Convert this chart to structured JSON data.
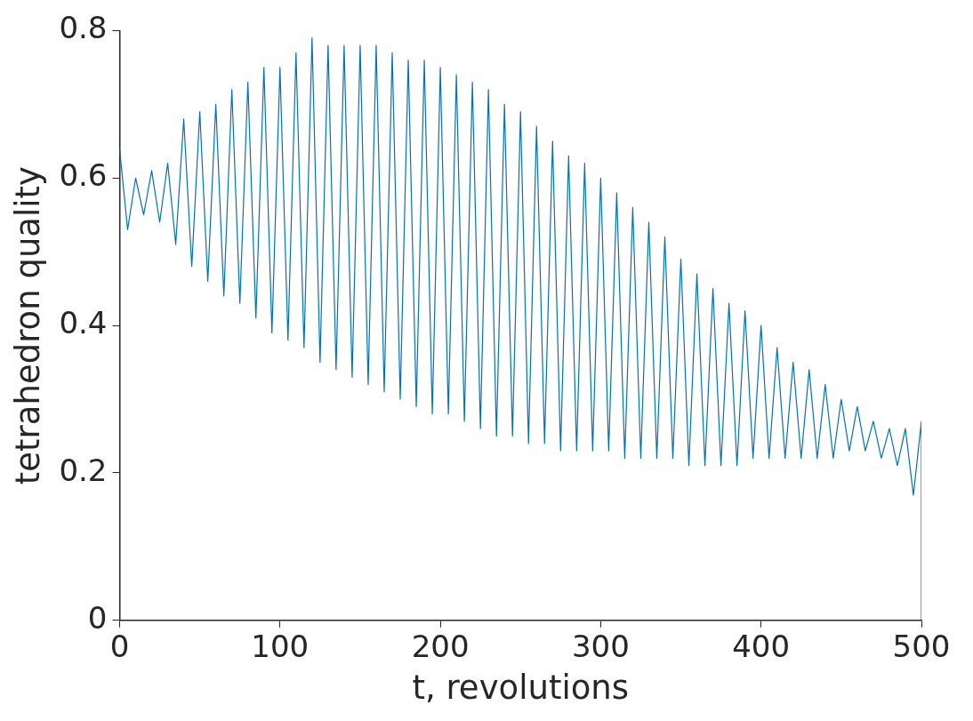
{
  "chart_data": {
    "type": "line",
    "xlabel": "t, revolutions",
    "ylabel": "tetrahedron quality",
    "xlim": [
      0,
      500
    ],
    "xticks": [
      0,
      100,
      200,
      300,
      400,
      500
    ],
    "ylim": [
      0,
      0.8
    ],
    "yticks": [
      0,
      0.2,
      0.4,
      0.6,
      0.8
    ],
    "grid": false,
    "legend": false,
    "marker": "none",
    "line_style": "solid",
    "series": [
      {
        "color": "#0072bd",
        "x": [
          0,
          5,
          10,
          15,
          20,
          25,
          30,
          35,
          40,
          45,
          50,
          55,
          60,
          65,
          70,
          75,
          80,
          85,
          90,
          95,
          100,
          105,
          110,
          115,
          120,
          125,
          130,
          135,
          140,
          145,
          150,
          155,
          160,
          165,
          170,
          175,
          180,
          185,
          190,
          195,
          200,
          205,
          210,
          215,
          220,
          225,
          230,
          235,
          240,
          245,
          250,
          255,
          260,
          265,
          270,
          275,
          280,
          285,
          290,
          295,
          300,
          305,
          310,
          315,
          320,
          325,
          330,
          335,
          340,
          345,
          350,
          355,
          360,
          365,
          370,
          375,
          380,
          385,
          390,
          395,
          400,
          405,
          410,
          415,
          420,
          425,
          430,
          435,
          440,
          445,
          450,
          455,
          460,
          465,
          470,
          475,
          480,
          485,
          490,
          495,
          500,
          500
        ],
        "values": [
          0.64,
          0.53,
          0.6,
          0.55,
          0.61,
          0.54,
          0.62,
          0.51,
          0.68,
          0.48,
          0.69,
          0.46,
          0.7,
          0.44,
          0.72,
          0.43,
          0.73,
          0.41,
          0.75,
          0.39,
          0.75,
          0.38,
          0.77,
          0.37,
          0.79,
          0.35,
          0.78,
          0.34,
          0.78,
          0.33,
          0.78,
          0.32,
          0.78,
          0.31,
          0.77,
          0.3,
          0.76,
          0.29,
          0.76,
          0.28,
          0.75,
          0.28,
          0.74,
          0.27,
          0.73,
          0.26,
          0.72,
          0.25,
          0.7,
          0.25,
          0.69,
          0.24,
          0.67,
          0.24,
          0.65,
          0.23,
          0.63,
          0.23,
          0.62,
          0.23,
          0.6,
          0.23,
          0.58,
          0.22,
          0.56,
          0.22,
          0.54,
          0.22,
          0.52,
          0.22,
          0.49,
          0.21,
          0.47,
          0.21,
          0.45,
          0.21,
          0.43,
          0.21,
          0.42,
          0.22,
          0.4,
          0.22,
          0.37,
          0.22,
          0.35,
          0.22,
          0.34,
          0.22,
          0.32,
          0.22,
          0.3,
          0.23,
          0.29,
          0.23,
          0.27,
          0.22,
          0.26,
          0.21,
          0.26,
          0.17,
          0.27,
          0
        ]
      }
    ]
  }
}
